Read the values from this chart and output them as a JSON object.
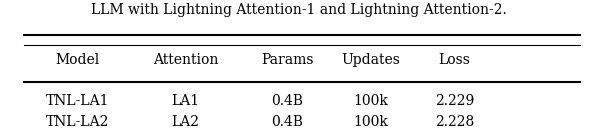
{
  "caption": "LLM with Lightning Attention-1 and Lightning Attention-2.",
  "columns": [
    "Model",
    "Attention",
    "Params",
    "Updates",
    "Loss"
  ],
  "rows": [
    [
      "TNL-LA1",
      "LA1",
      "0.4B",
      "100k",
      "2.229"
    ],
    [
      "TNL-LA2",
      "LA2",
      "0.4B",
      "100k",
      "2.228"
    ]
  ],
  "background_color": "#ffffff",
  "font_size": 10,
  "caption_font_size": 10
}
